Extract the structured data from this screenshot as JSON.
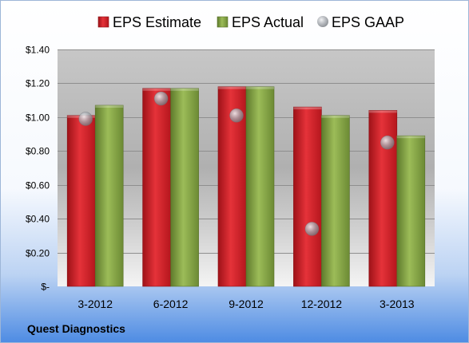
{
  "footer": {
    "company": "Quest Diagnostics"
  },
  "chart_data": {
    "type": "bar",
    "categories": [
      "3-2012",
      "6-2012",
      "9-2012",
      "12-2012",
      "3-2013"
    ],
    "series": [
      {
        "name": "EPS Estimate",
        "kind": "bar",
        "color": "#D42128",
        "values": [
          1.01,
          1.17,
          1.18,
          1.06,
          1.04
        ]
      },
      {
        "name": "EPS Actual",
        "kind": "bar",
        "color": "#8DAF4B",
        "values": [
          1.07,
          1.17,
          1.18,
          1.01,
          0.89
        ]
      },
      {
        "name": "EPS GAAP",
        "kind": "marker",
        "color": "#A9ADB2",
        "values": [
          0.99,
          1.11,
          1.01,
          0.34,
          0.85
        ]
      }
    ],
    "ylim": [
      0,
      1.4
    ],
    "yticks": [
      0,
      0.2,
      0.4,
      0.6,
      0.8,
      1.0,
      1.2,
      1.4
    ],
    "ytick_labels": [
      "$-",
      "$0.20",
      "$0.40",
      "$0.60",
      "$0.80",
      "$1.00",
      "$1.20",
      "$1.40"
    ],
    "grid": true,
    "legend_position": "top"
  }
}
